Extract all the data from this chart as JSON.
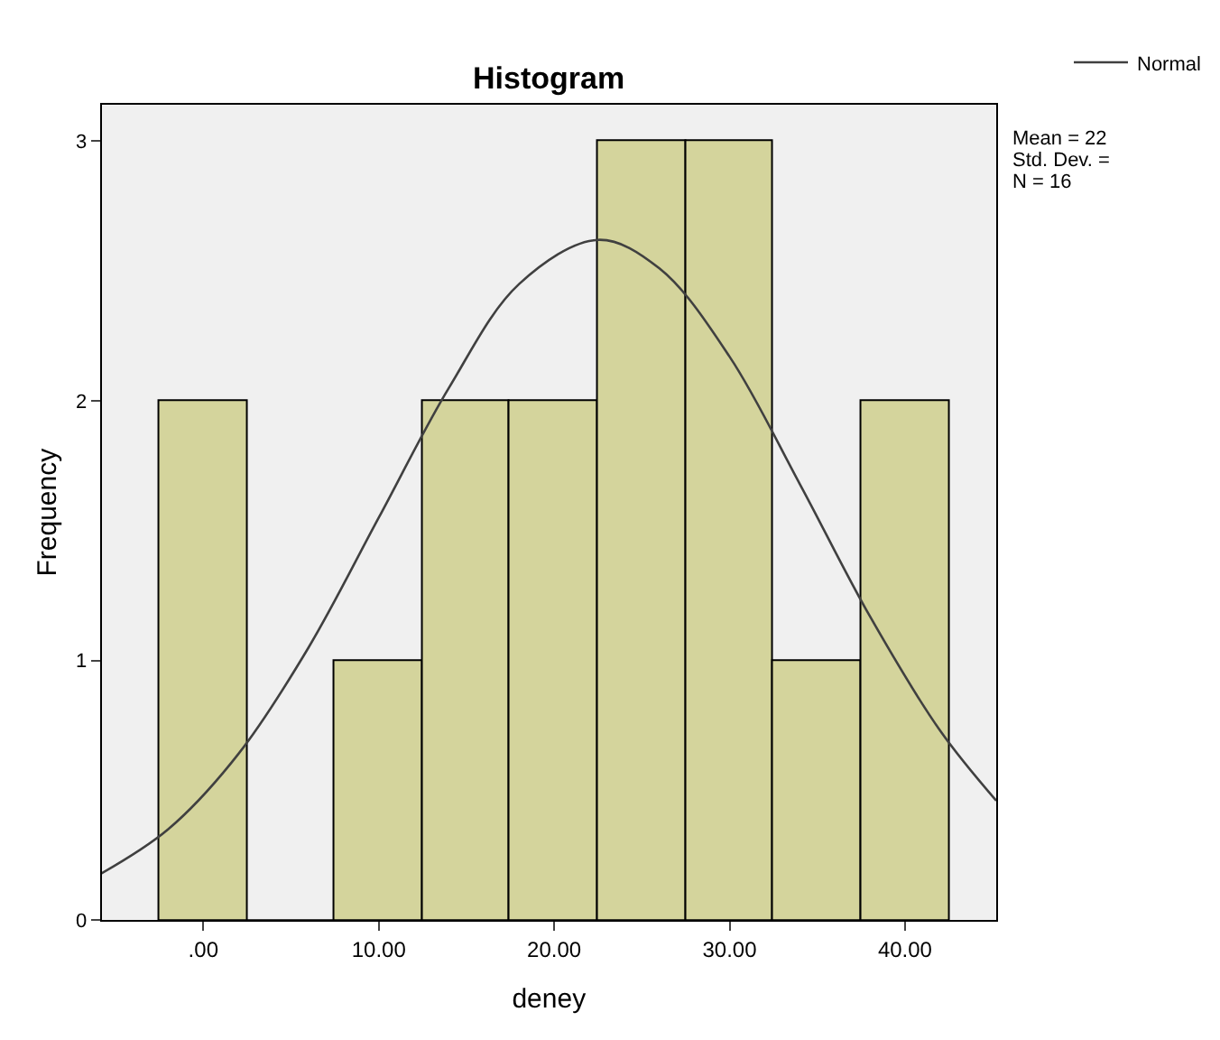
{
  "chart_data": [
    {
      "type": "histogram",
      "title": "Histogram",
      "xlabel": "deney",
      "ylabel": "Frequency",
      "bins": [
        -2.5,
        2.5,
        7.5,
        12.5,
        17.5,
        22.5,
        27.5,
        32.5,
        37.5,
        42.5
      ],
      "values": [
        2,
        0,
        1,
        2,
        2,
        3,
        3,
        1,
        2
      ],
      "color": "#d4d49c",
      "xlim": [
        -5.8,
        45.2
      ],
      "ylim": [
        0,
        3.14
      ],
      "xticks": [
        {
          "value": 0,
          "label": ".00"
        },
        {
          "value": 10,
          "label": "10.00"
        },
        {
          "value": 20,
          "label": "20.00"
        },
        {
          "value": 30,
          "label": "30.00"
        },
        {
          "value": 40,
          "label": "40.00"
        }
      ],
      "yticks": [
        0,
        1,
        2,
        3
      ],
      "series": [
        {
          "type": "line",
          "name": "Normal",
          "color": "#404040",
          "x": [
            -5.8,
            -2,
            2,
            6,
            10,
            14,
            18,
            22.5,
            26,
            30,
            34,
            38,
            42,
            45.2
          ],
          "values": [
            0.18,
            0.35,
            0.64,
            1.05,
            1.55,
            2.05,
            2.45,
            2.62,
            2.51,
            2.17,
            1.68,
            1.17,
            0.73,
            0.46
          ]
        }
      ],
      "annotations": [
        "Mean = 22",
        "Std. Dev. =",
        "N = 16"
      ],
      "legend": "top right",
      "grid": false
    }
  ]
}
